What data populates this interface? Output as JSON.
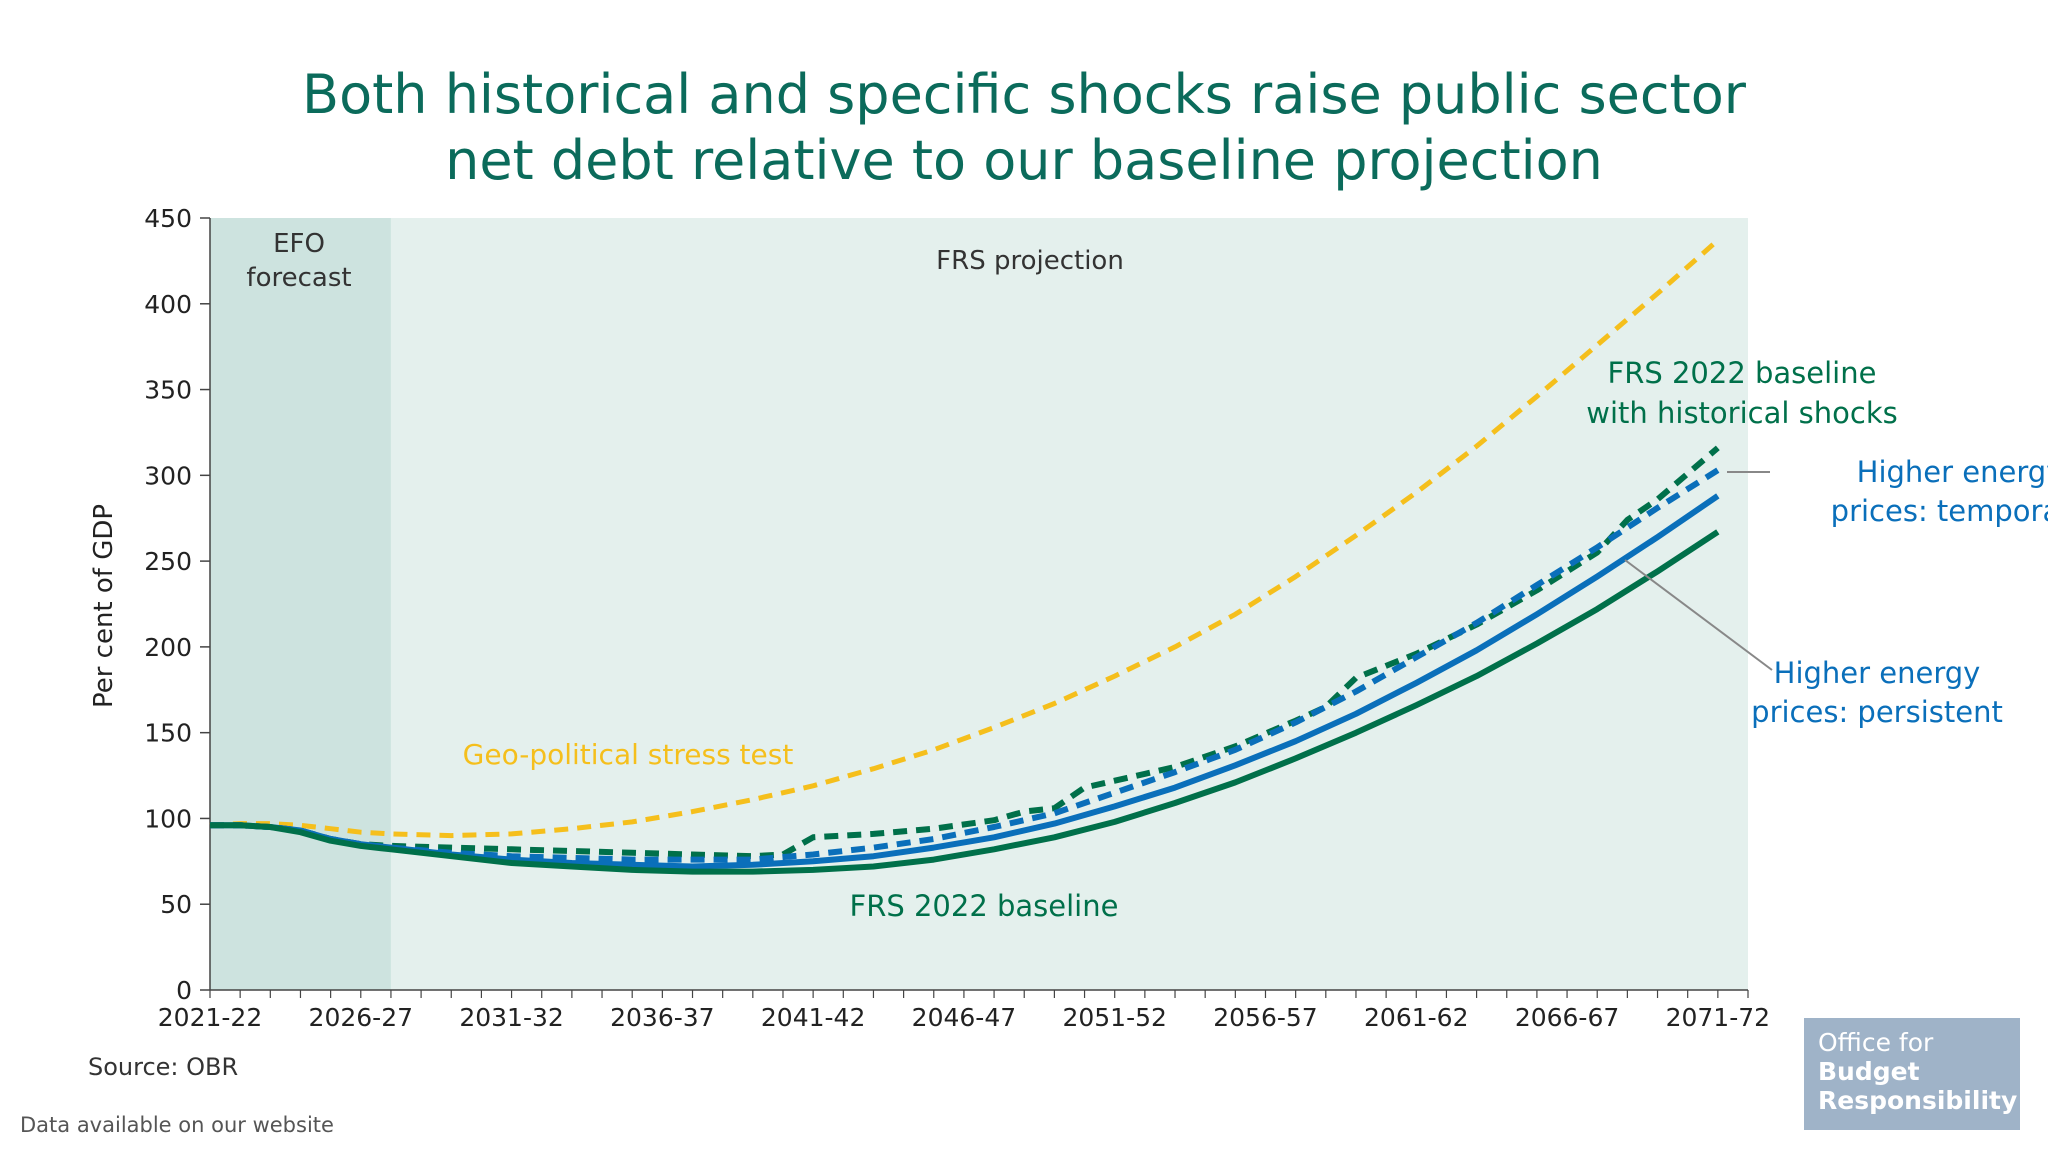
{
  "header": {
    "title_line1": "Both historical and specific shocks raise public sector",
    "title_line2": "net debt relative to our baseline projection"
  },
  "footer": {
    "source": "Source: OBR",
    "data_note": "Data available on our website"
  },
  "logo": {
    "line1": "Office for",
    "line2": "Budget",
    "line3": "Responsibility"
  },
  "colors": {
    "baseline": "#00704a",
    "historical": "#00704a",
    "energy": "#0a6fba",
    "geo": "#f5bf1c",
    "efo_band": "#cde3df",
    "frs_band": "#e4f0ed"
  },
  "chart_data": {
    "type": "line",
    "title": "Both historical and specific shocks raise public sector net debt relative to our baseline projection",
    "ylabel": "Per cent of GDP",
    "xlabel": "",
    "ylim": [
      0,
      450
    ],
    "yticks": [
      "0",
      "50",
      "100",
      "150",
      "200",
      "250",
      "300",
      "350",
      "400",
      "450"
    ],
    "xlim": [
      "2021-22",
      "2072-73"
    ],
    "xticks": [
      "2021-22",
      "2026-27",
      "2031-32",
      "2036-37",
      "2041-42",
      "2046-47",
      "2051-52",
      "2056-57",
      "2061-62",
      "2066-67",
      "2071-72"
    ],
    "grid": false,
    "regions": [
      {
        "label_line1": "EFO",
        "label_line2": "forecast",
        "from": "2021-22",
        "to": "2027-28"
      },
      {
        "label_line1": "FRS projection",
        "label_line2": "",
        "from": "2027-28",
        "to": "2072-73"
      }
    ],
    "series": [
      {
        "key": "geo",
        "name": "Geo-political stress test",
        "style": "dashed",
        "points": [
          [
            "2021-22",
            96
          ],
          [
            "2022-23",
            97
          ],
          [
            "2023-24",
            97
          ],
          [
            "2024-25",
            96
          ],
          [
            "2025-26",
            94
          ],
          [
            "2026-27",
            92
          ],
          [
            "2027-28",
            91
          ],
          [
            "2029-30",
            90
          ],
          [
            "2031-32",
            91
          ],
          [
            "2033-34",
            94
          ],
          [
            "2035-36",
            98
          ],
          [
            "2037-38",
            104
          ],
          [
            "2039-40",
            111
          ],
          [
            "2041-42",
            119
          ],
          [
            "2043-44",
            129
          ],
          [
            "2045-46",
            140
          ],
          [
            "2047-48",
            153
          ],
          [
            "2049-50",
            167
          ],
          [
            "2051-52",
            183
          ],
          [
            "2053-54",
            200
          ],
          [
            "2055-56",
            219
          ],
          [
            "2057-58",
            241
          ],
          [
            "2059-60",
            265
          ],
          [
            "2061-62",
            290
          ],
          [
            "2063-64",
            317
          ],
          [
            "2065-66",
            346
          ],
          [
            "2067-68",
            376
          ],
          [
            "2069-70",
            406
          ],
          [
            "2071-72",
            437
          ]
        ]
      },
      {
        "key": "historical",
        "name": "FRS 2022 baseline with historical shocks",
        "style": "dashed",
        "points": [
          [
            "2021-22",
            96
          ],
          [
            "2022-23",
            96
          ],
          [
            "2023-24",
            95
          ],
          [
            "2024-25",
            93
          ],
          [
            "2025-26",
            88
          ],
          [
            "2026-27",
            85
          ],
          [
            "2027-28",
            84
          ],
          [
            "2029-30",
            83
          ],
          [
            "2031-32",
            82
          ],
          [
            "2033-34",
            81
          ],
          [
            "2035-36",
            80
          ],
          [
            "2037-38",
            79
          ],
          [
            "2039-40",
            78
          ],
          [
            "2040-41",
            79
          ],
          [
            "2041-42",
            89
          ],
          [
            "2043-44",
            91
          ],
          [
            "2045-46",
            94
          ],
          [
            "2047-48",
            99
          ],
          [
            "2048-49",
            104
          ],
          [
            "2049-50",
            106
          ],
          [
            "2050-51",
            118
          ],
          [
            "2051-52",
            122
          ],
          [
            "2053-54",
            130
          ],
          [
            "2055-56",
            142
          ],
          [
            "2057-58",
            157
          ],
          [
            "2058-59",
            165
          ],
          [
            "2059-60",
            182
          ],
          [
            "2061-62",
            196
          ],
          [
            "2063-64",
            213
          ],
          [
            "2065-66",
            233
          ],
          [
            "2067-68",
            255
          ],
          [
            "2068-69",
            274
          ],
          [
            "2069-70",
            286
          ],
          [
            "2071-72",
            316
          ]
        ]
      },
      {
        "key": "temporary",
        "name": "Higher energy prices: temporary",
        "style": "dashed",
        "points": [
          [
            "2021-22",
            96
          ],
          [
            "2022-23",
            96
          ],
          [
            "2023-24",
            95
          ],
          [
            "2024-25",
            93
          ],
          [
            "2025-26",
            88
          ],
          [
            "2026-27",
            85
          ],
          [
            "2027-28",
            83
          ],
          [
            "2029-30",
            80
          ],
          [
            "2031-32",
            78
          ],
          [
            "2033-34",
            77
          ],
          [
            "2035-36",
            76
          ],
          [
            "2037-38",
            76
          ],
          [
            "2039-40",
            76
          ],
          [
            "2041-42",
            79
          ],
          [
            "2043-44",
            83
          ],
          [
            "2045-46",
            88
          ],
          [
            "2047-48",
            95
          ],
          [
            "2049-50",
            103
          ],
          [
            "2051-52",
            115
          ],
          [
            "2053-54",
            127
          ],
          [
            "2055-56",
            140
          ],
          [
            "2057-58",
            156
          ],
          [
            "2059-60",
            174
          ],
          [
            "2061-62",
            194
          ],
          [
            "2063-64",
            214
          ],
          [
            "2065-66",
            236
          ],
          [
            "2067-68",
            258
          ],
          [
            "2069-70",
            281
          ],
          [
            "2071-72",
            303
          ]
        ]
      },
      {
        "key": "persistent",
        "name": "Higher energy prices: persistent",
        "style": "solid",
        "points": [
          [
            "2021-22",
            96
          ],
          [
            "2022-23",
            96
          ],
          [
            "2023-24",
            95
          ],
          [
            "2024-25",
            93
          ],
          [
            "2025-26",
            88
          ],
          [
            "2026-27",
            85
          ],
          [
            "2027-28",
            83
          ],
          [
            "2029-30",
            79
          ],
          [
            "2031-32",
            76
          ],
          [
            "2033-34",
            74
          ],
          [
            "2035-36",
            73
          ],
          [
            "2037-38",
            72
          ],
          [
            "2039-40",
            73
          ],
          [
            "2041-42",
            75
          ],
          [
            "2043-44",
            78
          ],
          [
            "2045-46",
            83
          ],
          [
            "2047-48",
            89
          ],
          [
            "2049-50",
            97
          ],
          [
            "2051-52",
            107
          ],
          [
            "2053-54",
            118
          ],
          [
            "2055-56",
            131
          ],
          [
            "2057-58",
            145
          ],
          [
            "2059-60",
            161
          ],
          [
            "2061-62",
            179
          ],
          [
            "2063-64",
            198
          ],
          [
            "2065-66",
            219
          ],
          [
            "2067-68",
            241
          ],
          [
            "2069-70",
            264
          ],
          [
            "2071-72",
            288
          ]
        ]
      },
      {
        "key": "baseline",
        "name": "FRS 2022 baseline",
        "style": "solid",
        "points": [
          [
            "2021-22",
            96
          ],
          [
            "2022-23",
            96
          ],
          [
            "2023-24",
            95
          ],
          [
            "2024-25",
            92
          ],
          [
            "2025-26",
            87
          ],
          [
            "2026-27",
            84
          ],
          [
            "2027-28",
            82
          ],
          [
            "2029-30",
            78
          ],
          [
            "2031-32",
            74
          ],
          [
            "2033-34",
            72
          ],
          [
            "2035-36",
            70
          ],
          [
            "2037-38",
            69
          ],
          [
            "2039-40",
            69
          ],
          [
            "2041-42",
            70
          ],
          [
            "2043-44",
            72
          ],
          [
            "2045-46",
            76
          ],
          [
            "2047-48",
            82
          ],
          [
            "2049-50",
            89
          ],
          [
            "2051-52",
            98
          ],
          [
            "2053-54",
            109
          ],
          [
            "2055-56",
            121
          ],
          [
            "2057-58",
            135
          ],
          [
            "2059-60",
            150
          ],
          [
            "2061-62",
            166
          ],
          [
            "2063-64",
            183
          ],
          [
            "2065-66",
            202
          ],
          [
            "2067-68",
            222
          ],
          [
            "2069-70",
            244
          ],
          [
            "2071-72",
            267
          ]
        ]
      }
    ],
    "labels": {
      "geo": "Geo-political stress test",
      "historical_line1": "FRS 2022 baseline",
      "historical_line2": "with historical shocks",
      "temporary_line1": "Higher energy",
      "temporary_line2": "prices: temporary",
      "persistent_line1": "Higher energy",
      "persistent_line2": "prices: persistent",
      "baseline": "FRS 2022 baseline"
    }
  }
}
